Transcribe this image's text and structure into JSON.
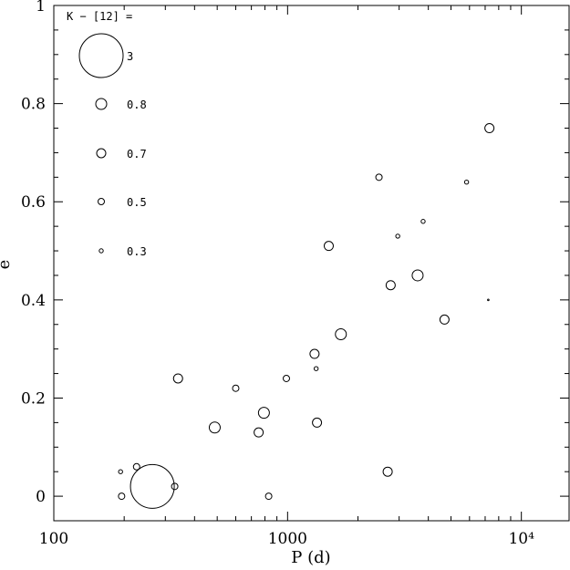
{
  "chart_data": {
    "type": "scatter",
    "xlabel": "P (d)",
    "ylabel": "e",
    "xscale": "log",
    "xlim": [
      100,
      16000
    ],
    "ylim": [
      -0.05,
      1.0
    ],
    "x_ticks": [
      100,
      1000,
      10000
    ],
    "x_tick_labels": [
      "100",
      "1000",
      "10⁴"
    ],
    "y_ticks": [
      0,
      0.2,
      0.4,
      0.6,
      0.8,
      1
    ],
    "y_tick_labels": [
      "0",
      "0.2",
      "0.4",
      "0.6",
      "0.8",
      "1"
    ],
    "grid": false,
    "marker": "open-circle, size encodes K - [12]",
    "legend": {
      "position": "top-left",
      "title": "K − [12] =",
      "entries": [
        {
          "label": "3",
          "k12": 3
        },
        {
          "label": "0.8",
          "k12": 0.8
        },
        {
          "label": "0.7",
          "k12": 0.7
        },
        {
          "label": "0.5",
          "k12": 0.5
        },
        {
          "label": "0.3",
          "k12": 0.3
        }
      ]
    },
    "points": [
      {
        "p": 264,
        "e": 0.02,
        "k12": 3
      },
      {
        "p": 193,
        "e": 0.05,
        "k12": 0.3
      },
      {
        "p": 226,
        "e": 0.06,
        "k12": 0.5
      },
      {
        "p": 195,
        "e": 0.0,
        "k12": 0.5
      },
      {
        "p": 329,
        "e": 0.02,
        "k12": 0.5
      },
      {
        "p": 340,
        "e": 0.24,
        "k12": 0.7
      },
      {
        "p": 488,
        "e": 0.14,
        "k12": 0.8
      },
      {
        "p": 600,
        "e": 0.22,
        "k12": 0.5
      },
      {
        "p": 752,
        "e": 0.13,
        "k12": 0.7
      },
      {
        "p": 792,
        "e": 0.17,
        "k12": 0.8
      },
      {
        "p": 830,
        "e": 0.0,
        "k12": 0.5
      },
      {
        "p": 988,
        "e": 0.24,
        "k12": 0.5
      },
      {
        "p": 1304,
        "e": 0.29,
        "k12": 0.7
      },
      {
        "p": 1325,
        "e": 0.26,
        "k12": 0.3
      },
      {
        "p": 1336,
        "e": 0.15,
        "k12": 0.7
      },
      {
        "p": 1500,
        "e": 0.51,
        "k12": 0.7
      },
      {
        "p": 1690,
        "e": 0.33,
        "k12": 0.8
      },
      {
        "p": 2460,
        "e": 0.65,
        "k12": 0.5
      },
      {
        "p": 2680,
        "e": 0.05,
        "k12": 0.7
      },
      {
        "p": 2760,
        "e": 0.43,
        "k12": 0.7
      },
      {
        "p": 2960,
        "e": 0.53,
        "k12": 0.3
      },
      {
        "p": 3600,
        "e": 0.45,
        "k12": 0.8
      },
      {
        "p": 3800,
        "e": 0.56,
        "k12": 0.3
      },
      {
        "p": 4690,
        "e": 0.36,
        "k12": 0.7
      },
      {
        "p": 5830,
        "e": 0.64,
        "k12": 0.3
      },
      {
        "p": 7220,
        "e": 0.4,
        "k12": 0.1
      },
      {
        "p": 7300,
        "e": 0.75,
        "k12": 0.7
      }
    ]
  }
}
